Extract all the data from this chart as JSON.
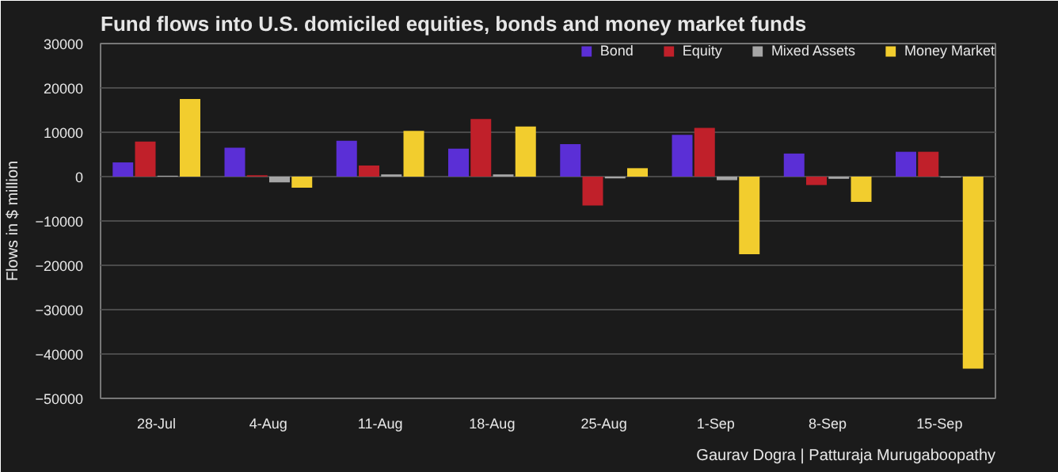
{
  "chart_data": {
    "type": "bar",
    "title": "Fund flows into U.S. domiciled equities, bonds and money market funds",
    "ylabel": "Flows in $ million",
    "categories": [
      "28-Jul",
      "4-Aug",
      "11-Aug",
      "18-Aug",
      "25-Aug",
      "1-Sep",
      "8-Sep",
      "15-Sep"
    ],
    "series": [
      {
        "name": "Bond",
        "color": "#5b2fd6",
        "values": [
          3200,
          6500,
          8100,
          6300,
          7300,
          9400,
          5200,
          5600
        ]
      },
      {
        "name": "Equity",
        "color": "#c0202a",
        "values": [
          7900,
          300,
          2500,
          13000,
          -6500,
          11000,
          -1900,
          5600
        ]
      },
      {
        "name": "Mixed Assets",
        "color": "#a6a6a6",
        "values": [
          200,
          -1300,
          500,
          500,
          -400,
          -800,
          -500,
          -200
        ]
      },
      {
        "name": "Money Market",
        "color": "#f2cd2e",
        "values": [
          17500,
          -2500,
          10300,
          11300,
          1900,
          -17500,
          -5700,
          -43300
        ]
      }
    ],
    "ylim": [
      -50000,
      30000
    ],
    "yticks": [
      -50000,
      -40000,
      -30000,
      -20000,
      -10000,
      0,
      10000,
      20000,
      30000
    ],
    "grid": "y",
    "legend": "top right",
    "annotations": [
      "Gaurav Dogra | Patturaja Murugaboopathy"
    ]
  }
}
